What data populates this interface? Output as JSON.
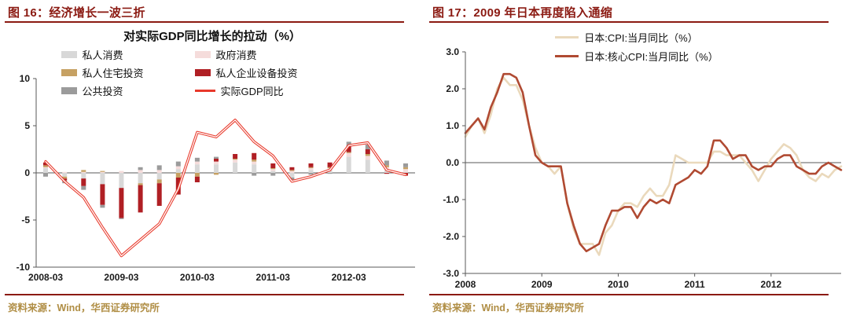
{
  "page": {
    "background": "#ffffff",
    "accent_color": "#8B1A12",
    "source_text_color": "#B08E45"
  },
  "figure_left": {
    "header": "图 16：经济增长一波三折",
    "source": "资料来源：Wind，华西证券研究所"
  },
  "figure_right": {
    "header": "图 17：2009 年日本再度陷入通缩",
    "source": "资料来源：Wind，华西证券研究所"
  },
  "chart_data": [
    {
      "type": "bar",
      "variant": "stacked-bars-with-line-overlay",
      "title": "对实际GDP同比增长的拉动（%）",
      "unit": "%",
      "ylim": [
        -10,
        10
      ],
      "grid": "zero-line-only",
      "legend_position": "top",
      "yticks": [
        {
          "v": 10,
          "label": "10"
        },
        {
          "v": 5,
          "label": "5"
        },
        {
          "v": 0,
          "label": "0"
        },
        {
          "v": -5,
          "label": "-5"
        },
        {
          "v": -10,
          "label": "-10"
        }
      ],
      "categories": [
        "2008-03",
        "2008-06",
        "2008-09",
        "2008-12",
        "2009-03",
        "2009-06",
        "2009-09",
        "2009-12",
        "2010-03",
        "2010-06",
        "2010-09",
        "2010-12",
        "2011-03",
        "2011-06",
        "2011-09",
        "2011-12",
        "2012-03",
        "2012-06",
        "2012-09",
        "2012-12"
      ],
      "x_ticks": [
        {
          "index": 0,
          "label": "2008-03"
        },
        {
          "index": 4,
          "label": "2009-03"
        },
        {
          "index": 8,
          "label": "2010-03"
        },
        {
          "index": 12,
          "label": "2011-03"
        },
        {
          "index": 16,
          "label": "2012-03"
        }
      ],
      "bar_series": [
        {
          "name": "私人消费",
          "color": "#D8D8D8",
          "values": [
            0.5,
            -0.4,
            -0.6,
            -1.2,
            -1.6,
            -1.1,
            -0.7,
            0.4,
            0.9,
            0.9,
            1.1,
            0.9,
            0.2,
            -0.5,
            0.3,
            0.3,
            1.7,
            1.4,
            0.3,
            0.1
          ]
        },
        {
          "name": "政府消费",
          "color": "#F5DCDB",
          "values": [
            0.1,
            0.1,
            0.1,
            0.1,
            0.2,
            0.3,
            0.3,
            0.3,
            0.3,
            0.3,
            0.3,
            0.3,
            0.2,
            0.2,
            0.2,
            0.2,
            0.4,
            0.4,
            0.3,
            0.3
          ]
        },
        {
          "name": "私人住宅投资",
          "color": "#C6A163",
          "values": [
            0.2,
            -0.2,
            0.2,
            0.1,
            0.0,
            -0.2,
            -0.4,
            -0.5,
            -0.4,
            -0.2,
            0.1,
            0.2,
            0.1,
            0.1,
            0.1,
            0.1,
            0.1,
            0.2,
            0.2,
            0.2
          ]
        },
        {
          "name": "私人企业设备投资",
          "color": "#B01F24",
          "values": [
            0.3,
            -0.2,
            -0.8,
            -2.2,
            -3.2,
            -2.9,
            -2.4,
            -1.8,
            -0.6,
            0.3,
            0.5,
            0.7,
            0.5,
            0.3,
            0.4,
            0.5,
            0.7,
            0.5,
            -0.1,
            -0.3
          ]
        },
        {
          "name": "公共投资",
          "color": "#9B9B9B",
          "values": [
            -0.4,
            -0.3,
            -0.4,
            -0.3,
            -0.1,
            0.3,
            0.5,
            0.5,
            0.4,
            0.2,
            0.0,
            -0.3,
            -0.3,
            -0.3,
            -0.2,
            -0.1,
            0.4,
            0.5,
            0.5,
            0.4
          ]
        }
      ],
      "line_series": {
        "name": "实际GDP同比",
        "color": "#E8392B",
        "style": "red-outline-white-core",
        "values": [
          1.2,
          -0.9,
          -2.6,
          -5.8,
          -8.8,
          -7.1,
          -5.4,
          -1.7,
          4.3,
          3.8,
          5.6,
          3.3,
          1.8,
          -0.9,
          -0.4,
          0.3,
          2.9,
          3.2,
          0.3,
          -0.2
        ]
      }
    },
    {
      "type": "line",
      "title": "",
      "unit": "%",
      "frequency": "monthly",
      "x_range": [
        "2008-01",
        "2012-12"
      ],
      "ylim": [
        -3,
        3
      ],
      "grid": "zero-line-only",
      "legend_position": "top",
      "yticks": [
        {
          "v": 3,
          "label": "3.0"
        },
        {
          "v": 2,
          "label": "2.0"
        },
        {
          "v": 1,
          "label": "1.0"
        },
        {
          "v": 0,
          "label": "0.0"
        },
        {
          "v": -1,
          "label": "-1.0"
        },
        {
          "v": -2,
          "label": "-2.0"
        },
        {
          "v": -3,
          "label": "-3.0"
        }
      ],
      "x_ticks": [
        {
          "index": 0,
          "label": "2008"
        },
        {
          "index": 12,
          "label": "2009"
        },
        {
          "index": 24,
          "label": "2010"
        },
        {
          "index": 36,
          "label": "2011"
        },
        {
          "index": 48,
          "label": "2012"
        }
      ],
      "series": [
        {
          "name": "日本:CPI:当月同比（%）",
          "color": "#EAD9BC",
          "width": 2.6,
          "values": [
            0.7,
            1.0,
            1.2,
            0.8,
            1.3,
            2.0,
            2.3,
            2.1,
            2.1,
            1.7,
            1.0,
            0.4,
            0.0,
            -0.1,
            -0.3,
            -0.1,
            -1.1,
            -1.8,
            -2.2,
            -2.2,
            -2.2,
            -2.5,
            -1.9,
            -1.7,
            -1.3,
            -1.1,
            -1.1,
            -1.2,
            -0.9,
            -0.7,
            -0.9,
            -0.9,
            -0.6,
            0.2,
            0.1,
            0.0,
            0.0,
            0.0,
            0.0,
            0.3,
            0.3,
            0.2,
            0.2,
            0.2,
            0.0,
            -0.2,
            -0.5,
            -0.2,
            0.1,
            0.3,
            0.5,
            0.4,
            0.2,
            -0.2,
            -0.4,
            -0.5,
            -0.3,
            -0.4,
            -0.2,
            -0.1
          ]
        },
        {
          "name": "日本:核心CPI:当月同比（%）",
          "color": "#B04A32",
          "width": 2.6,
          "values": [
            0.8,
            1.0,
            1.2,
            0.9,
            1.5,
            1.9,
            2.4,
            2.4,
            2.3,
            1.9,
            1.0,
            0.2,
            0.0,
            -0.1,
            -0.1,
            -0.1,
            -1.1,
            -1.7,
            -2.2,
            -2.4,
            -2.3,
            -2.2,
            -1.7,
            -1.3,
            -1.3,
            -1.2,
            -1.2,
            -1.5,
            -1.2,
            -1.0,
            -1.1,
            -1.0,
            -1.1,
            -0.6,
            -0.5,
            -0.4,
            -0.2,
            -0.3,
            -0.1,
            0.6,
            0.6,
            0.4,
            0.1,
            0.2,
            0.2,
            -0.1,
            -0.2,
            -0.1,
            -0.1,
            0.1,
            0.2,
            0.2,
            -0.1,
            -0.2,
            -0.3,
            -0.3,
            -0.1,
            0.0,
            -0.1,
            -0.2
          ]
        }
      ]
    }
  ]
}
